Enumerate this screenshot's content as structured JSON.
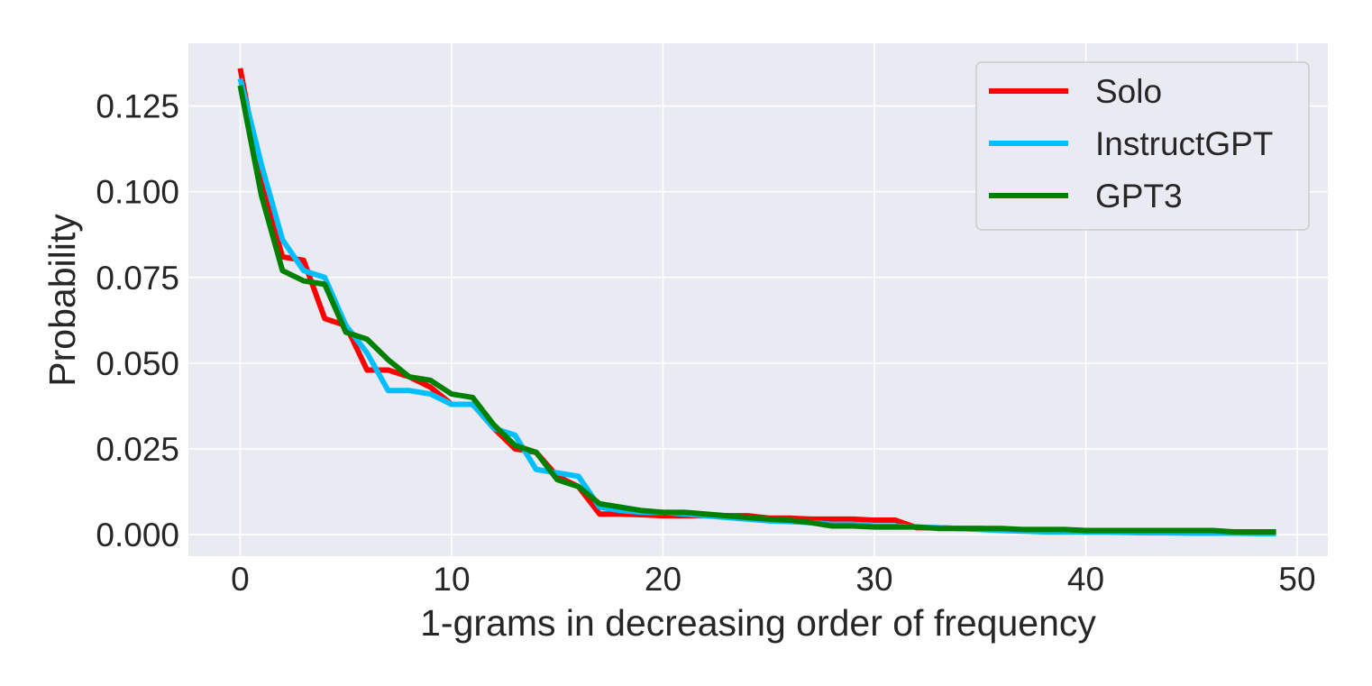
{
  "chart_data": {
    "type": "line",
    "title": "",
    "xlabel": "1-grams in decreasing order of frequency",
    "ylabel": "Probability",
    "xlim": [
      -2.45,
      51.45
    ],
    "ylim": [
      -0.0063,
      0.1433
    ],
    "xticks": [
      0,
      10,
      20,
      30,
      40,
      50
    ],
    "xtick_labels": [
      "0",
      "10",
      "20",
      "30",
      "40",
      "50"
    ],
    "yticks": [
      0.0,
      0.025,
      0.05,
      0.075,
      0.1,
      0.125
    ],
    "ytick_labels": [
      "0.000",
      "0.025",
      "0.050",
      "0.075",
      "0.100",
      "0.125"
    ],
    "grid": true,
    "legend_position": "top-right",
    "x": [
      0,
      1,
      2,
      3,
      4,
      5,
      6,
      7,
      8,
      9,
      10,
      11,
      12,
      13,
      14,
      15,
      16,
      17,
      18,
      19,
      20,
      21,
      22,
      23,
      24,
      25,
      26,
      27,
      28,
      29,
      30,
      31,
      32,
      33,
      34,
      35,
      36,
      37,
      38,
      39,
      40,
      41,
      42,
      43,
      44,
      45,
      46,
      47,
      48,
      49
    ],
    "series": [
      {
        "name": "Solo",
        "color": "#ff0000",
        "values": [
          0.136,
          0.103,
          0.081,
          0.08,
          0.063,
          0.061,
          0.048,
          0.048,
          0.046,
          0.043,
          0.038,
          0.038,
          0.031,
          0.025,
          0.024,
          0.017,
          0.014,
          0.006,
          0.006,
          0.0058,
          0.0055,
          0.0055,
          0.0055,
          0.0055,
          0.0055,
          0.0048,
          0.0048,
          0.0045,
          0.0045,
          0.0045,
          0.0042,
          0.0042,
          0.002,
          0.002,
          0.0018,
          0.0018,
          0.0016,
          0.0014,
          0.0012,
          0.0012,
          0.001,
          0.001,
          0.001,
          0.0009,
          0.0009,
          0.0008,
          0.0008,
          0.0006,
          0.0006,
          0.0005
        ]
      },
      {
        "name": "InstructGPT",
        "color": "#00bfff",
        "values": [
          0.133,
          0.108,
          0.086,
          0.077,
          0.075,
          0.061,
          0.053,
          0.042,
          0.042,
          0.041,
          0.038,
          0.038,
          0.031,
          0.029,
          0.019,
          0.018,
          0.017,
          0.008,
          0.007,
          0.0065,
          0.0065,
          0.006,
          0.0055,
          0.005,
          0.0045,
          0.004,
          0.0038,
          0.0035,
          0.003,
          0.003,
          0.0025,
          0.0025,
          0.0022,
          0.002,
          0.0018,
          0.0015,
          0.0012,
          0.001,
          0.0008,
          0.0008,
          0.0007,
          0.0007,
          0.0006,
          0.0005,
          0.0005,
          0.0004,
          0.0004,
          0.0004,
          0.0003,
          0.0003
        ]
      },
      {
        "name": "GPT3",
        "color": "#008000",
        "values": [
          0.131,
          0.099,
          0.077,
          0.074,
          0.073,
          0.059,
          0.057,
          0.051,
          0.046,
          0.045,
          0.041,
          0.04,
          0.032,
          0.026,
          0.024,
          0.016,
          0.014,
          0.009,
          0.008,
          0.007,
          0.0065,
          0.0065,
          0.006,
          0.0055,
          0.005,
          0.0045,
          0.0042,
          0.0035,
          0.0025,
          0.0025,
          0.0022,
          0.0022,
          0.0022,
          0.0018,
          0.0018,
          0.0018,
          0.0018,
          0.0015,
          0.0015,
          0.0015,
          0.0012,
          0.0012,
          0.0012,
          0.0012,
          0.0012,
          0.0012,
          0.0012,
          0.0008,
          0.0008,
          0.0008
        ]
      }
    ]
  }
}
